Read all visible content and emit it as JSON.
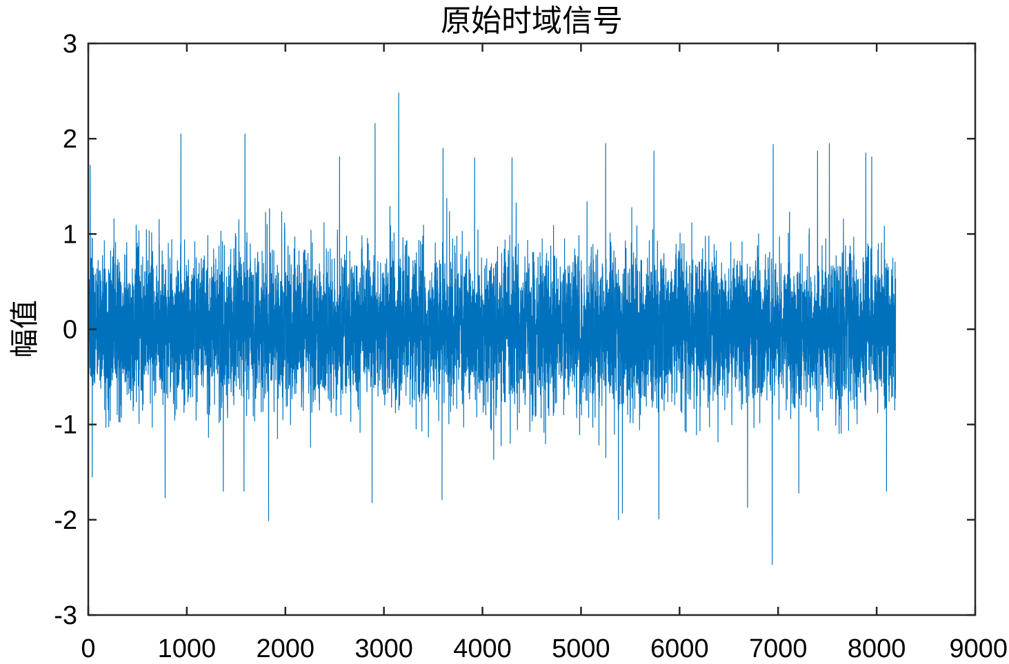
{
  "chart_data": {
    "type": "line",
    "title": "原始时域信号",
    "xlabel": "",
    "ylabel": "幅值",
    "xlim": [
      0,
      9000
    ],
    "ylim": [
      -3,
      3
    ],
    "x_ticks": [
      0,
      1000,
      2000,
      3000,
      4000,
      5000,
      6000,
      7000,
      8000,
      9000
    ],
    "y_ticks": [
      -3,
      -2,
      -1,
      0,
      1,
      2,
      3
    ],
    "x_tick_labels": [
      "0",
      "1000",
      "2000",
      "3000",
      "4000",
      "5000",
      "6000",
      "7000",
      "8000",
      "9000"
    ],
    "y_tick_labels": [
      "-3",
      "-2",
      "-1",
      "0",
      "1",
      "2",
      "3"
    ],
    "grid": false,
    "series_color": "#0072BD",
    "series": [
      {
        "x_start": 1,
        "x_end": 8192,
        "envelope_y": [
          0.75,
          -0.75
        ],
        "peaks": [
          {
            "x": 3150,
            "y": 2.48
          },
          {
            "x": 6940,
            "y": -2.47
          },
          {
            "x": 2910,
            "y": 2.16
          },
          {
            "x": 940,
            "y": 2.05
          },
          {
            "x": 1590,
            "y": 2.05
          },
          {
            "x": 1830,
            "y": -2.01
          },
          {
            "x": 5380,
            "y": -2.0
          },
          {
            "x": 5790,
            "y": -1.99
          },
          {
            "x": 5250,
            "y": 1.95
          },
          {
            "x": 7520,
            "y": 1.95
          },
          {
            "x": 6950,
            "y": 1.94
          },
          {
            "x": 3600,
            "y": 1.9
          },
          {
            "x": 5740,
            "y": 1.87
          },
          {
            "x": 7400,
            "y": 1.87
          },
          {
            "x": 780,
            "y": 1.85
          },
          {
            "x": 7890,
            "y": 1.85
          },
          {
            "x": 7950,
            "y": 1.81
          },
          {
            "x": 2550,
            "y": 1.81
          },
          {
            "x": 3920,
            "y": 1.8
          },
          {
            "x": 4300,
            "y": 1.8
          },
          {
            "x": 780,
            "y": -1.77
          },
          {
            "x": 3590,
            "y": -1.79
          },
          {
            "x": 2880,
            "y": -1.82
          },
          {
            "x": 8100,
            "y": -1.7
          },
          {
            "x": 1370,
            "y": -1.7
          },
          {
            "x": 1580,
            "y": -1.7
          },
          {
            "x": 7210,
            "y": -1.72
          },
          {
            "x": 5420,
            "y": -1.93
          },
          {
            "x": 6690,
            "y": -1.87
          },
          {
            "x": 20,
            "y": 1.72
          },
          {
            "x": 40,
            "y": -1.55
          }
        ]
      }
    ]
  }
}
